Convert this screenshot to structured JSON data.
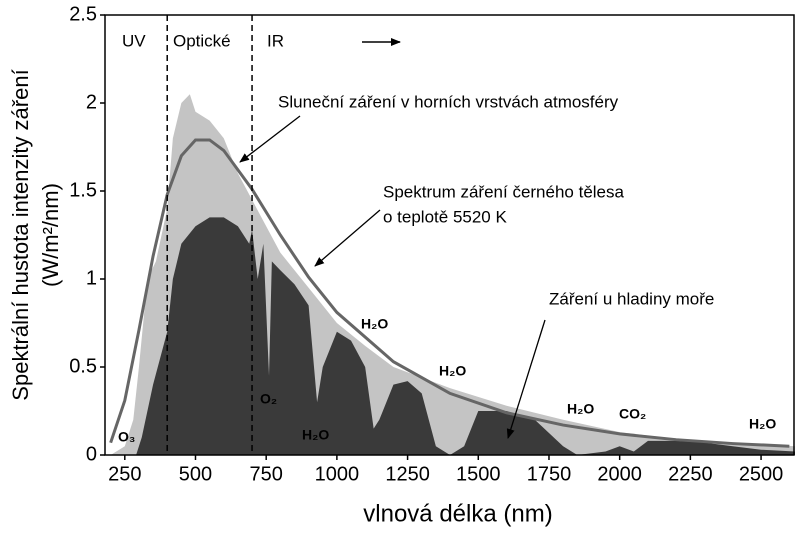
{
  "chart_data": {
    "type": "area",
    "ylabel": [
      "Spektrální hustota intenzity záření",
      "(W/m²/nm)"
    ],
    "xlabel": "vlnová délka (nm)",
    "xlim": [
      180,
      2620
    ],
    "ylim": [
      0,
      2.5
    ],
    "xticks": [
      250,
      500,
      750,
      1000,
      1250,
      1500,
      1750,
      2000,
      2250,
      2500
    ],
    "yticks": [
      0,
      0.5,
      1,
      1.5,
      2,
      2.5
    ],
    "vlines": [
      400,
      700
    ],
    "regions": [
      "UV",
      "Optické",
      "IR"
    ],
    "annotations": [
      "Sluneční záření v horních vrstvách atmosféry",
      "Spektrum záření černého tělesa",
      "o teplotě 5520 K",
      "Záření u hladiny moře"
    ],
    "molecules": [
      "O₃",
      "O₂",
      "H₂O",
      "H₂O",
      "H₂O",
      "H₂O",
      "CO₂",
      "H₂O"
    ],
    "series": [
      {
        "kind": "area",
        "color": "#c4c4c4",
        "x": [
          200,
          250,
          280,
          300,
          330,
          360,
          400,
          420,
          450,
          480,
          500,
          550,
          600,
          650,
          700,
          800,
          900,
          1000,
          1100,
          1200,
          1400,
          1600,
          1800,
          2000,
          2200,
          2400,
          2620
        ],
        "values": [
          0,
          0.05,
          0.2,
          0.5,
          1.0,
          1.1,
          1.4,
          1.8,
          2.0,
          2.05,
          1.95,
          1.9,
          1.8,
          1.6,
          1.45,
          1.15,
          0.95,
          0.75,
          0.62,
          0.5,
          0.38,
          0.28,
          0.2,
          0.13,
          0.09,
          0.07,
          0.05
        ]
      },
      {
        "kind": "area",
        "color": "#3a3a3a",
        "x": [
          290,
          310,
          350,
          400,
          420,
          450,
          500,
          550,
          600,
          650,
          690,
          700,
          720,
          740,
          760,
          770,
          800,
          850,
          900,
          930,
          950,
          1000,
          1050,
          1100,
          1130,
          1150,
          1200,
          1250,
          1300,
          1350,
          1400,
          1450,
          1500,
          1600,
          1700,
          1800,
          1850,
          1950,
          2000,
          2050,
          2100,
          2200,
          2300,
          2400,
          2500,
          2620
        ],
        "values": [
          0,
          0.1,
          0.4,
          0.7,
          1.0,
          1.2,
          1.3,
          1.35,
          1.35,
          1.3,
          1.2,
          1.28,
          1.0,
          1.2,
          0.45,
          1.1,
          1.05,
          0.97,
          0.85,
          0.3,
          0.5,
          0.7,
          0.65,
          0.5,
          0.15,
          0.2,
          0.4,
          0.42,
          0.35,
          0.05,
          0,
          0.05,
          0.25,
          0.25,
          0.2,
          0.05,
          0,
          0.02,
          0.05,
          0.02,
          0.08,
          0.08,
          0.07,
          0.05,
          0.03,
          0.02
        ]
      },
      {
        "kind": "line",
        "color": "#666666",
        "x": [
          200,
          250,
          300,
          350,
          400,
          450,
          500,
          550,
          600,
          700,
          800,
          900,
          1000,
          1200,
          1400,
          1600,
          1800,
          2000,
          2200,
          2400,
          2600
        ],
        "values": [
          0.07,
          0.31,
          0.71,
          1.13,
          1.48,
          1.7,
          1.79,
          1.79,
          1.73,
          1.51,
          1.25,
          1.01,
          0.81,
          0.53,
          0.35,
          0.24,
          0.17,
          0.12,
          0.087,
          0.065,
          0.05
        ]
      }
    ]
  }
}
